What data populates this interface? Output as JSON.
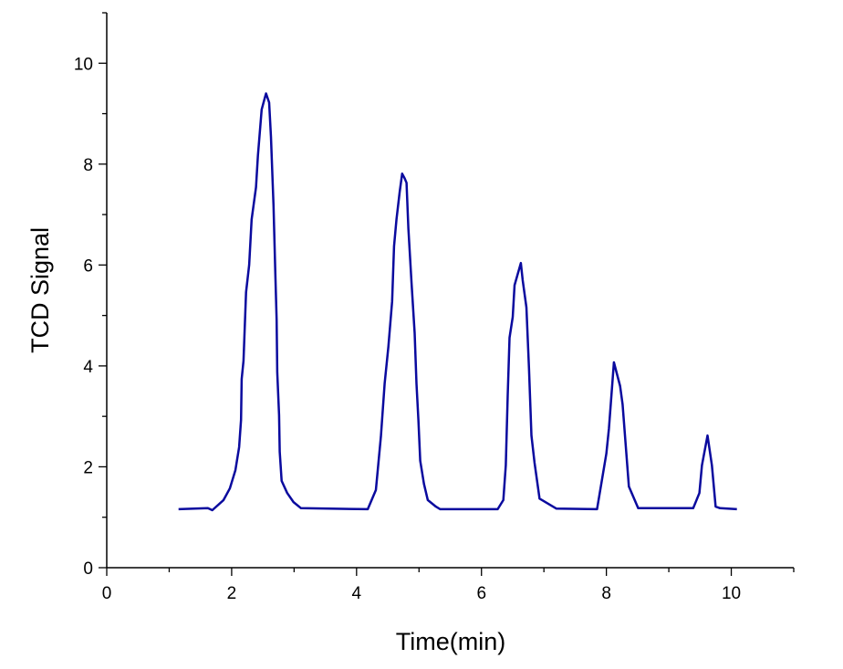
{
  "chart_data": {
    "type": "line",
    "title": "",
    "xlabel": "Time(min)",
    "ylabel": "TCD Signal",
    "xlim": [
      0,
      11
    ],
    "ylim": [
      0,
      11
    ],
    "xticks": [
      0,
      2,
      4,
      6,
      8,
      10
    ],
    "yticks": [
      0,
      2,
      4,
      6,
      8,
      10
    ],
    "xtick_labels": [
      "0",
      "2",
      "4",
      "6",
      "8",
      "10"
    ],
    "ytick_labels": [
      "0",
      "2",
      "4",
      "6",
      "8",
      "10"
    ],
    "minor_ticks": true,
    "grid": false,
    "line_color": "#0a0a9e",
    "series": [
      {
        "x": [
          1.15,
          1.62,
          1.69,
          1.87,
          1.97,
          2.06,
          2.12,
          2.15,
          2.16,
          2.19,
          2.23,
          2.28,
          2.32,
          2.39,
          2.42,
          2.48,
          2.53,
          2.55,
          2.6,
          2.63,
          2.67,
          2.7,
          2.72,
          2.73,
          2.76,
          2.77,
          2.8,
          2.89,
          2.99,
          3.11,
          4.18,
          4.31,
          4.39,
          4.45,
          4.51,
          4.57,
          4.6,
          4.64,
          4.69,
          4.73,
          4.77,
          4.8,
          4.83,
          4.88,
          4.93,
          4.96,
          4.99,
          5.02,
          5.08,
          5.14,
          5.27,
          5.34,
          6.26,
          6.35,
          6.39,
          6.42,
          6.45,
          6.5,
          6.53,
          6.63,
          6.66,
          6.72,
          6.76,
          6.8,
          6.85,
          6.93,
          7.2,
          7.85,
          8.0,
          8.04,
          8.12,
          8.22,
          8.26,
          8.36,
          8.51,
          9.39,
          9.49,
          9.53,
          9.62,
          9.69,
          9.75,
          9.82,
          10.09
        ],
        "y": [
          1.16,
          1.18,
          1.14,
          1.34,
          1.57,
          1.93,
          2.39,
          2.93,
          3.74,
          4.1,
          5.46,
          6.0,
          6.9,
          7.54,
          8.17,
          9.08,
          9.31,
          9.4,
          9.22,
          8.54,
          7.18,
          5.82,
          4.92,
          3.87,
          3.02,
          2.3,
          1.72,
          1.48,
          1.3,
          1.18,
          1.16,
          1.54,
          2.6,
          3.65,
          4.38,
          5.28,
          6.37,
          6.91,
          7.45,
          7.81,
          7.72,
          7.63,
          6.73,
          5.64,
          4.65,
          3.65,
          2.93,
          2.12,
          1.66,
          1.34,
          1.21,
          1.16,
          1.16,
          1.34,
          2.03,
          3.42,
          4.56,
          4.97,
          5.6,
          6.04,
          5.7,
          5.16,
          3.96,
          2.62,
          2.08,
          1.37,
          1.17,
          1.16,
          2.26,
          2.75,
          4.07,
          3.6,
          3.24,
          1.61,
          1.18,
          1.18,
          1.48,
          2.03,
          2.62,
          2.03,
          1.21,
          1.18,
          1.16
        ]
      }
    ]
  }
}
